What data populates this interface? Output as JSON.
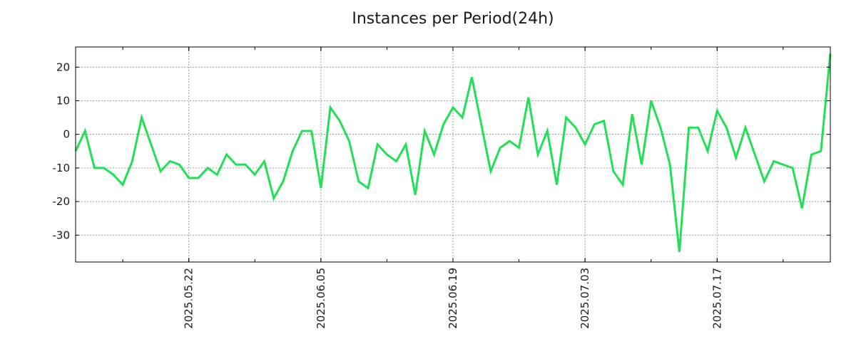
{
  "chart_data": {
    "type": "line",
    "title": "Instances per Period(24h)",
    "xlabel": "",
    "ylabel": "",
    "ylim": [
      -38,
      26
    ],
    "yticks": [
      20,
      10,
      0,
      -10,
      -20,
      -30
    ],
    "ytick_labels": [
      "20",
      "10",
      "0",
      "-10",
      "-20",
      "-30"
    ],
    "xticks": [
      {
        "index": 12,
        "label": "2025.05.22"
      },
      {
        "index": 26,
        "label": "2025.06.05"
      },
      {
        "index": 40,
        "label": "2025.06.19"
      },
      {
        "index": 54,
        "label": "2025.07.03"
      },
      {
        "index": 68,
        "label": "2025.07.17"
      }
    ],
    "grid": true,
    "line_color": "#22e055",
    "series": [
      {
        "name": "Instances",
        "values": [
          -5,
          1,
          -10,
          -10,
          -12,
          -15,
          -8,
          5,
          -3,
          -11,
          -8,
          -9,
          -13,
          -13,
          -10,
          -12,
          -6,
          -9,
          -9,
          -12,
          -8,
          -19,
          -14,
          -5,
          1,
          1,
          -16,
          8,
          4,
          -2,
          -14,
          -16,
          -3,
          -6,
          -8,
          -3,
          -18,
          1,
          -6,
          3,
          8,
          5,
          17,
          3,
          -11,
          -4,
          -2,
          -4,
          11,
          -6,
          1,
          -15,
          5,
          2,
          -3,
          3,
          4,
          -11,
          -15,
          6,
          -9,
          10,
          2,
          -9,
          -35,
          2,
          2,
          -5,
          7,
          2,
          -7,
          2,
          -6,
          -14,
          -8,
          -9,
          -10,
          -22,
          -6,
          -5,
          24
        ]
      }
    ]
  }
}
